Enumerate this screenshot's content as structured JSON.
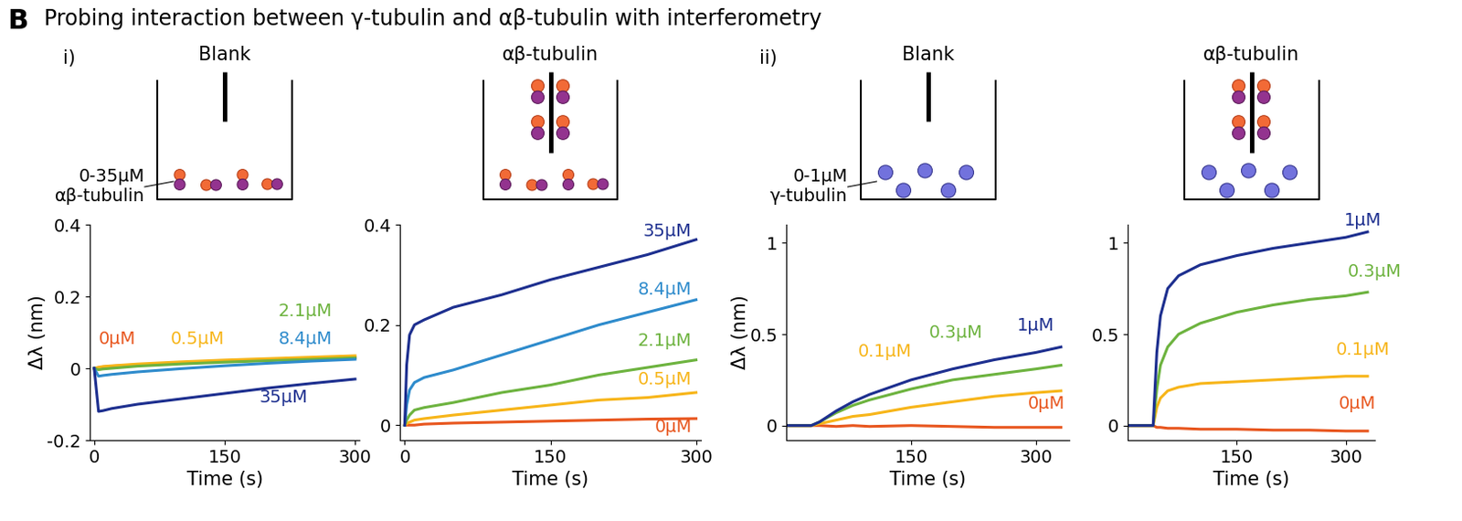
{
  "figure_letter": "B",
  "figure_title": "Probing interaction between γ-tubulin and αβ-tubulin with interferometry",
  "group_labels": [
    "i)",
    "ii)"
  ],
  "chart_data": [
    {
      "type": "line",
      "title": "Blank",
      "annotation": "0-35µM\nαβ-tubulin",
      "y_label": "Δλ (nm)",
      "x_label": "Time (s)",
      "xlim": [
        -5,
        305
      ],
      "xticks": [
        0,
        150,
        300
      ],
      "ylim": [
        -0.2,
        0.4
      ],
      "yticks": [
        -0.2,
        0,
        0.2,
        0.4
      ],
      "x": [
        0,
        5,
        10,
        20,
        50,
        100,
        150,
        200,
        250,
        300
      ],
      "series": [
        {
          "name": "0µM",
          "color": "#e8561e",
          "values": [
            0,
            0.002,
            0.004,
            0.006,
            0.01,
            0.015,
            0.019,
            0.023,
            0.027,
            0.03
          ]
        },
        {
          "name": "0.5µM",
          "color": "#f7b519",
          "values": [
            0,
            0.003,
            0.005,
            0.007,
            0.012,
            0.018,
            0.023,
            0.027,
            0.031,
            0.035
          ]
        },
        {
          "name": "2.1µM",
          "color": "#6db33f",
          "values": [
            0,
            -0.004,
            -0.002,
            0,
            0.006,
            0.012,
            0.017,
            0.021,
            0.025,
            0.029
          ]
        },
        {
          "name": "8.4µM",
          "color": "#2e8bcc",
          "values": [
            0,
            -0.022,
            -0.02,
            -0.017,
            -0.01,
            -0.001,
            0.007,
            0.014,
            0.02,
            0.025
          ]
        },
        {
          "name": "35µM",
          "color": "#1d2f8f",
          "values": [
            0,
            -0.12,
            -0.118,
            -0.112,
            -0.1,
            -0.085,
            -0.07,
            -0.055,
            -0.042,
            -0.03
          ]
        }
      ]
    },
    {
      "type": "line",
      "title": "αβ-tubulin",
      "x_label": "Time (s)",
      "xlim": [
        -5,
        305
      ],
      "xticks": [
        0,
        150,
        300
      ],
      "ylim": [
        -0.03,
        0.4
      ],
      "yticks": [
        0,
        0.2,
        0.4
      ],
      "x": [
        0,
        2,
        5,
        10,
        20,
        50,
        100,
        150,
        200,
        250,
        300
      ],
      "series": [
        {
          "name": "0µM",
          "color": "#e8561e",
          "values": [
            0,
            0,
            0,
            0,
            0.002,
            0.004,
            0.006,
            0.008,
            0.01,
            0.012,
            0.013
          ]
        },
        {
          "name": "0.5µM",
          "color": "#f7b519",
          "values": [
            0,
            0.003,
            0.006,
            0.01,
            0.013,
            0.02,
            0.03,
            0.04,
            0.05,
            0.055,
            0.065
          ]
        },
        {
          "name": "2.1µM",
          "color": "#6db33f",
          "values": [
            0,
            0.01,
            0.02,
            0.03,
            0.035,
            0.045,
            0.065,
            0.08,
            0.1,
            0.115,
            0.13
          ]
        },
        {
          "name": "8.4µM",
          "color": "#2e8bcc",
          "values": [
            0,
            0.04,
            0.07,
            0.085,
            0.095,
            0.11,
            0.14,
            0.17,
            0.2,
            0.225,
            0.25
          ]
        },
        {
          "name": "35µM",
          "color": "#1d2f8f",
          "values": [
            0,
            0.12,
            0.18,
            0.2,
            0.21,
            0.235,
            0.26,
            0.29,
            0.315,
            0.34,
            0.37
          ]
        }
      ]
    },
    {
      "type": "line",
      "title": "Blank",
      "annotation": "0-1µM\nγ-tubulin",
      "y_label": "Δλ (nm)",
      "x_label": "Time (s)",
      "xlim": [
        0,
        340
      ],
      "xticks": [
        150,
        300
      ],
      "ylim": [
        -0.08,
        1.1
      ],
      "yticks": [
        0,
        0.5,
        1
      ],
      "x": [
        0,
        20,
        30,
        40,
        60,
        80,
        100,
        150,
        200,
        250,
        300,
        330
      ],
      "series": [
        {
          "name": "0µM",
          "color": "#e8561e",
          "values": [
            0,
            0,
            0,
            0,
            -0.005,
            0,
            -0.005,
            0,
            -0.005,
            -0.01,
            -0.01,
            -0.01
          ]
        },
        {
          "name": "0.1µM",
          "color": "#f7b519",
          "values": [
            0,
            0,
            0,
            0.01,
            0.03,
            0.05,
            0.06,
            0.1,
            0.13,
            0.16,
            0.18,
            0.19
          ]
        },
        {
          "name": "0.3µM",
          "color": "#6db33f",
          "values": [
            0,
            0,
            0,
            0.02,
            0.07,
            0.11,
            0.14,
            0.2,
            0.25,
            0.28,
            0.31,
            0.33
          ]
        },
        {
          "name": "1µM",
          "color": "#1d2f8f",
          "values": [
            0,
            0,
            0,
            0.02,
            0.08,
            0.13,
            0.17,
            0.25,
            0.31,
            0.36,
            0.4,
            0.43
          ]
        }
      ]
    },
    {
      "type": "line",
      "title": "αβ-tubulin",
      "x_label": "Time (s)",
      "xlim": [
        0,
        340
      ],
      "xticks": [
        150,
        300
      ],
      "ylim": [
        -0.08,
        1.1
      ],
      "yticks": [
        0,
        0.5,
        1
      ],
      "x": [
        0,
        20,
        35,
        40,
        45,
        55,
        70,
        100,
        150,
        200,
        250,
        300,
        330
      ],
      "series": [
        {
          "name": "0µM",
          "color": "#e8561e",
          "values": [
            0,
            0,
            0,
            -0.01,
            -0.01,
            -0.015,
            -0.015,
            -0.02,
            -0.02,
            -0.025,
            -0.025,
            -0.03,
            -0.03
          ]
        },
        {
          "name": "0.1µM",
          "color": "#f7b519",
          "values": [
            0,
            0,
            0,
            0.1,
            0.15,
            0.19,
            0.21,
            0.23,
            0.24,
            0.25,
            0.26,
            0.27,
            0.27
          ]
        },
        {
          "name": "0.3µM",
          "color": "#6db33f",
          "values": [
            0,
            0,
            0,
            0.2,
            0.33,
            0.43,
            0.5,
            0.56,
            0.62,
            0.66,
            0.69,
            0.71,
            0.73
          ]
        },
        {
          "name": "1µM",
          "color": "#1d2f8f",
          "values": [
            0,
            0,
            0,
            0.4,
            0.6,
            0.75,
            0.82,
            0.88,
            0.93,
            0.97,
            1.0,
            1.03,
            1.06
          ]
        }
      ]
    }
  ]
}
